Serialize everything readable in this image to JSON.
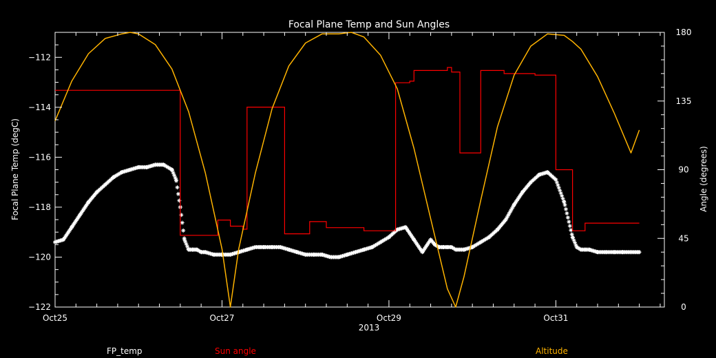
{
  "chart_data": {
    "type": "line",
    "title": "Focal Plane Temp and Sun Angles",
    "xlabel": "2013",
    "ylabel": "Focal Plane Temp (degC)",
    "y2label": "Angle (degrees)",
    "x_tick_labels": [
      "Oct25",
      "Oct27",
      "Oct29",
      "Oct31"
    ],
    "x_ticks": [
      0,
      2,
      4,
      6
    ],
    "xlim": [
      0,
      7.3
    ],
    "ylim": [
      -122,
      -111
    ],
    "y_ticks": [
      -122,
      -120,
      -118,
      -116,
      -114,
      -112
    ],
    "y2lim": [
      0,
      180
    ],
    "y2_ticks": [
      0,
      45,
      90,
      135,
      180
    ],
    "grid": false,
    "legend_placement": "bottom",
    "colors": {
      "fp_temp": "#ffffff",
      "sun_angle": "#ff0000",
      "altitude": "#ffb300",
      "axes": "#ffffff",
      "background": "#000000"
    },
    "series": [
      {
        "name": "FP_temp",
        "axis": "left",
        "marker": "asterisk",
        "x": [
          0.0,
          0.1,
          0.2,
          0.3,
          0.4,
          0.5,
          0.6,
          0.7,
          0.8,
          0.9,
          1.0,
          1.1,
          1.2,
          1.3,
          1.4,
          1.45,
          1.5,
          1.55,
          1.6,
          1.65,
          1.7,
          1.75,
          1.8,
          1.9,
          2.0,
          2.1,
          2.2,
          2.3,
          2.4,
          2.45,
          2.5,
          2.6,
          2.7,
          2.8,
          2.9,
          3.0,
          3.1,
          3.2,
          3.3,
          3.4,
          3.5,
          3.6,
          3.7,
          3.8,
          3.9,
          4.0,
          4.1,
          4.2,
          4.3,
          4.4,
          4.5,
          4.55,
          4.6,
          4.65,
          4.7,
          4.75,
          4.8,
          4.9,
          5.0,
          5.1,
          5.2,
          5.3,
          5.4,
          5.5,
          5.6,
          5.7,
          5.8,
          5.9,
          6.0,
          6.1,
          6.2,
          6.25,
          6.3,
          6.35,
          6.4,
          6.5,
          6.6,
          6.7,
          6.8,
          6.9,
          7.0
        ],
        "values": [
          -119.4,
          -119.3,
          -118.8,
          -118.3,
          -117.8,
          -117.4,
          -117.1,
          -116.8,
          -116.6,
          -116.5,
          -116.4,
          -116.4,
          -116.3,
          -116.3,
          -116.5,
          -116.9,
          -118.0,
          -119.3,
          -119.7,
          -119.7,
          -119.7,
          -119.8,
          -119.8,
          -119.9,
          -119.9,
          -119.9,
          -119.8,
          -119.7,
          -119.6,
          -119.6,
          -119.6,
          -119.6,
          -119.6,
          -119.7,
          -119.8,
          -119.9,
          -119.9,
          -119.9,
          -120.0,
          -120.0,
          -119.9,
          -119.8,
          -119.7,
          -119.6,
          -119.4,
          -119.2,
          -118.9,
          -118.8,
          -119.3,
          -119.8,
          -119.3,
          -119.5,
          -119.6,
          -119.6,
          -119.6,
          -119.6,
          -119.7,
          -119.7,
          -119.6,
          -119.4,
          -119.2,
          -118.9,
          -118.5,
          -117.9,
          -117.4,
          -117.0,
          -116.7,
          -116.6,
          -116.9,
          -117.8,
          -119.2,
          -119.6,
          -119.7,
          -119.7,
          -119.7,
          -119.8,
          -119.8,
          -119.8,
          -119.8,
          -119.8,
          -119.8
        ]
      },
      {
        "name": "Sun angle",
        "axis": "right",
        "step": true,
        "x": [
          0.0,
          1.5,
          1.5,
          1.95,
          1.95,
          2.1,
          2.1,
          2.25,
          2.25,
          2.3,
          2.3,
          2.75,
          2.75,
          3.05,
          3.05,
          3.25,
          3.25,
          3.7,
          3.7,
          4.08,
          4.08,
          4.25,
          4.25,
          4.3,
          4.3,
          4.7,
          4.7,
          4.75,
          4.75,
          4.85,
          4.85,
          5.1,
          5.1,
          5.38,
          5.38,
          5.75,
          5.75,
          6.0,
          6.0,
          6.2,
          6.2,
          6.25,
          6.25,
          6.35,
          6.35,
          7.0
        ],
        "values": [
          142,
          142,
          47,
          47,
          57,
          57,
          53,
          53,
          51,
          51,
          131,
          131,
          48,
          48,
          56,
          56,
          52,
          52,
          50,
          50,
          147,
          147,
          148,
          148,
          155,
          155,
          157,
          157,
          154,
          154,
          101,
          101,
          155,
          155,
          153,
          153,
          152,
          152,
          90,
          90,
          50,
          50,
          50,
          50,
          55,
          55
        ]
      },
      {
        "name": "Altitude",
        "axis": "right",
        "x": [
          0.0,
          0.2,
          0.4,
          0.6,
          0.8,
          0.9,
          1.0,
          1.2,
          1.4,
          1.6,
          1.8,
          2.0,
          2.1,
          2.2,
          2.4,
          2.6,
          2.8,
          3.0,
          3.2,
          3.4,
          3.55,
          3.7,
          3.9,
          4.1,
          4.3,
          4.5,
          4.7,
          4.8,
          4.9,
          5.1,
          5.3,
          5.5,
          5.7,
          5.9,
          6.1,
          6.2,
          6.3,
          6.5,
          6.7,
          6.9,
          7.0
        ],
        "values": [
          122,
          148,
          166,
          176,
          179,
          180,
          179,
          172,
          156,
          128,
          88,
          38,
          0,
          38,
          88,
          130,
          158,
          173,
          179,
          179,
          180,
          177,
          165,
          143,
          104,
          58,
          12,
          0,
          20,
          70,
          118,
          152,
          171,
          179,
          178,
          174,
          169,
          151,
          127,
          101,
          116
        ]
      }
    ],
    "legend": [
      {
        "label": "FP_temp",
        "color": "#ffffff"
      },
      {
        "label": "Sun angle",
        "color": "#ff0000"
      },
      {
        "label": "Altitude",
        "color": "#ffb300"
      }
    ]
  }
}
